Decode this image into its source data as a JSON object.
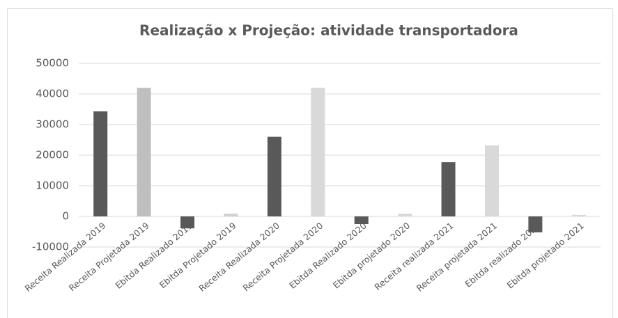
{
  "chart_data": {
    "type": "bar",
    "title": "Realização x Projeção: atividade transportadora",
    "categories": [
      "Receita Realizada 2019",
      "Receita Projetada 2019",
      "Ebitda Realizado 2019",
      "Ebitda Projetado 2019",
      "Receita Realizada 2020",
      "Receita Projetada 2020",
      "Ebitda Realizado 2020",
      "Ebitda projetado 2020",
      "Receita realizada 2021",
      "Receita projetada 2021",
      "Ebitda realizado 2021",
      "Ebitda projetado 2021"
    ],
    "values": [
      34300,
      42000,
      -3900,
      900,
      26000,
      42000,
      -2500,
      900,
      17700,
      23200,
      -5200,
      500
    ],
    "colors": [
      "#595959",
      "#bfbfbf",
      "#595959",
      "#d0d0d0",
      "#595959",
      "#d9d9d9",
      "#595959",
      "#d9d9d9",
      "#595959",
      "#d9d9d9",
      "#595959",
      "#d9d9d9"
    ],
    "ylim": [
      -10000,
      50000
    ],
    "yticks": [
      -10000,
      0,
      10000,
      20000,
      30000,
      40000,
      50000
    ],
    "grid": true
  }
}
